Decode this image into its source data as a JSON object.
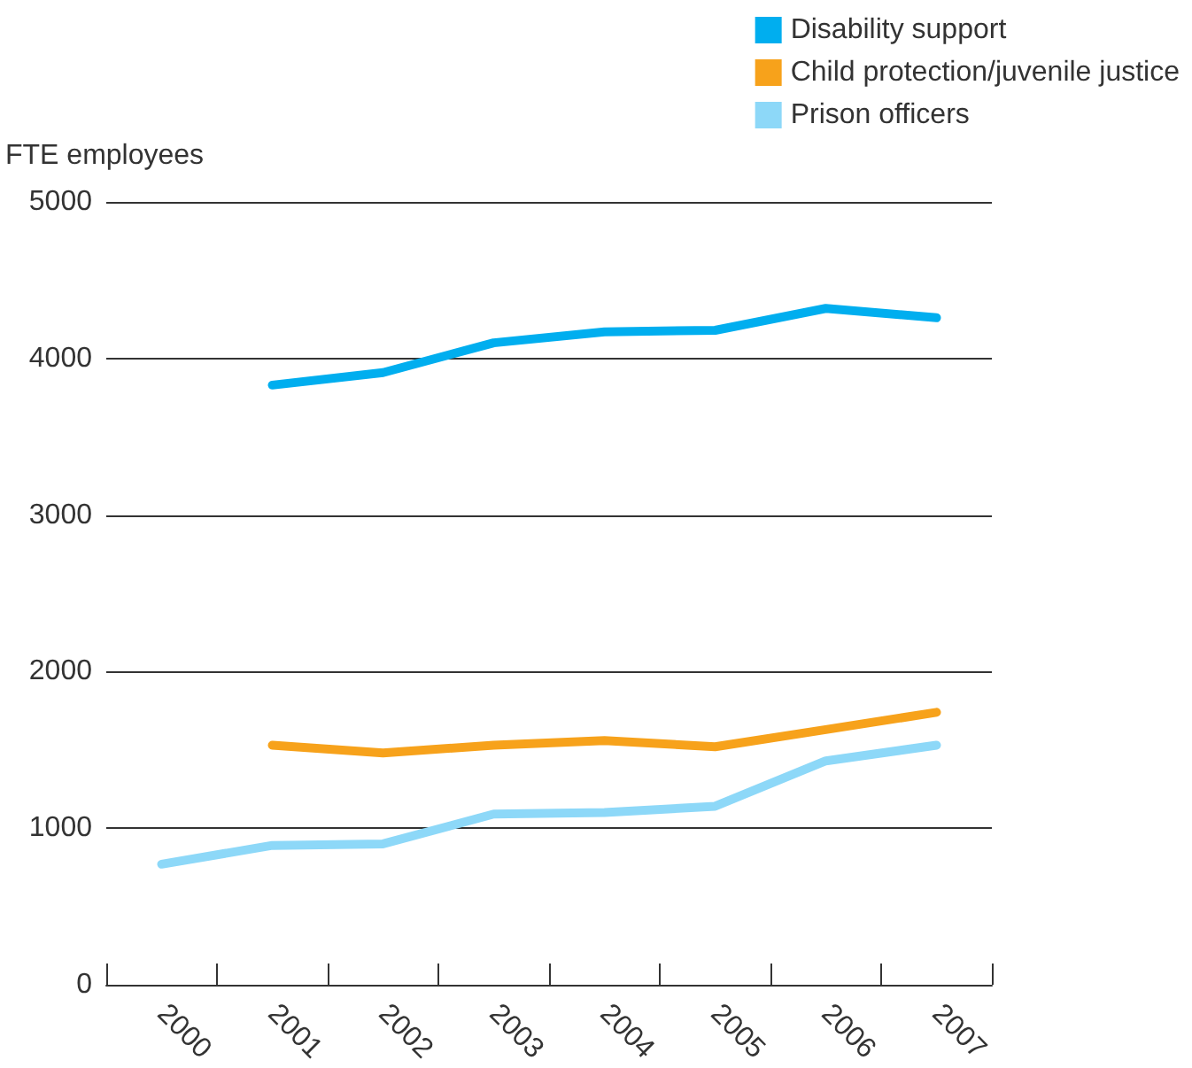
{
  "chart_data": {
    "type": "line",
    "ylabel": "FTE employees",
    "categories": [
      "2000",
      "2001",
      "2002",
      "2003",
      "2004",
      "2005",
      "2006",
      "2007"
    ],
    "series": [
      {
        "name": "Disability support",
        "color": "#00aeef",
        "values": [
          null,
          3830,
          3910,
          4100,
          4170,
          4180,
          4320,
          4260
        ]
      },
      {
        "name": "Child protection/juvenile justice",
        "color": "#f7a21b",
        "values": [
          null,
          1530,
          1480,
          1530,
          1560,
          1520,
          1630,
          1740
        ]
      },
      {
        "name": "Prison officers",
        "color": "#8dd8f8",
        "values": [
          770,
          890,
          900,
          1090,
          1100,
          1140,
          1430,
          1530
        ]
      }
    ],
    "ylim": [
      0,
      5000
    ],
    "yticks": [
      0,
      1000,
      2000,
      3000,
      4000,
      5000
    ],
    "grid": "y",
    "legend": "top right",
    "marker": "none",
    "line_style": "solid"
  }
}
